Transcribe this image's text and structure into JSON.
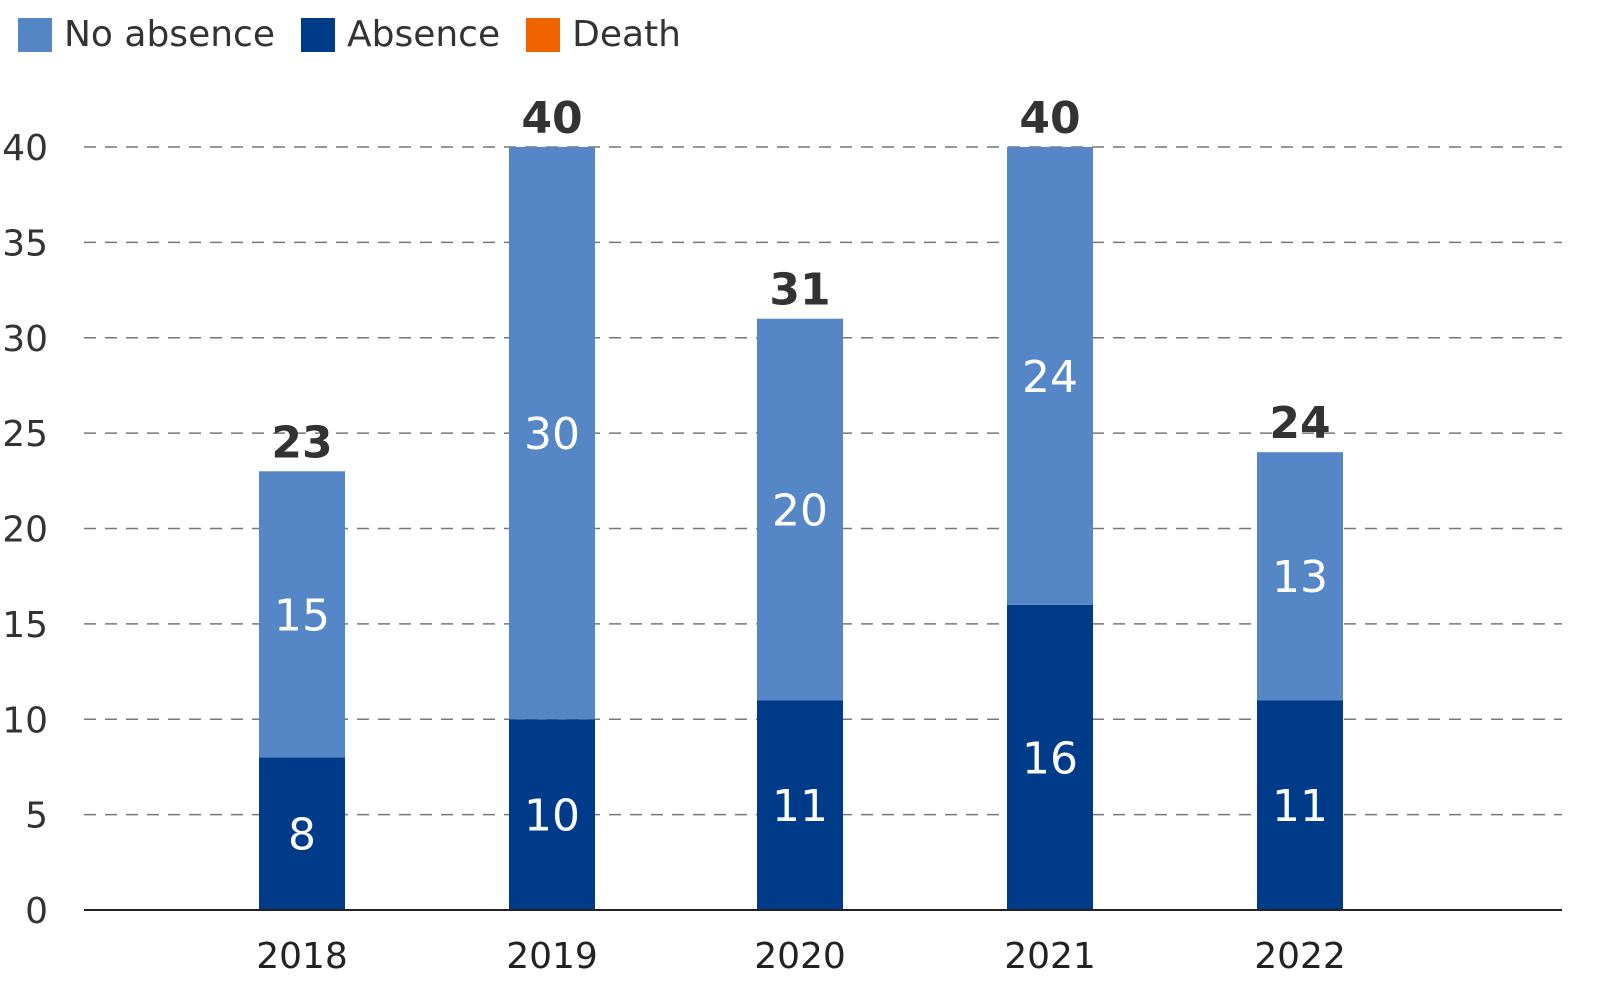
{
  "chart_data": {
    "type": "bar",
    "stacked": true,
    "title": "",
    "xlabel": "",
    "ylabel": "",
    "categories": [
      "2018",
      "2019",
      "2020",
      "2021",
      "2022"
    ],
    "series": [
      {
        "name": "No absence",
        "color": "#5587c6",
        "values": [
          15,
          30,
          20,
          24,
          13
        ]
      },
      {
        "name": "Absence",
        "color": "#003b8a",
        "values": [
          8,
          10,
          11,
          16,
          11
        ]
      },
      {
        "name": "Death",
        "color": "#f06400",
        "values": [
          0,
          0,
          0,
          0,
          0
        ]
      }
    ],
    "totals": [
      23,
      40,
      31,
      40,
      24
    ],
    "ylim": [
      0,
      40
    ],
    "yticks": [
      0,
      5,
      10,
      15,
      20,
      25,
      30,
      35,
      40
    ],
    "grid": "horizontal-dashed",
    "legend_position": "top-left"
  }
}
